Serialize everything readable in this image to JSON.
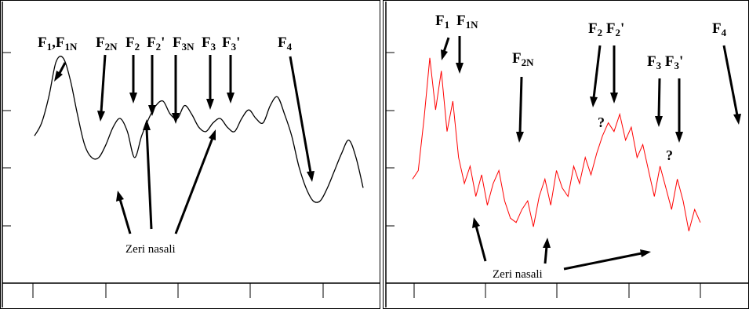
{
  "chart_data": [
    {
      "type": "line",
      "color": "#000000",
      "series_color": "#000000",
      "x": [
        0,
        2,
        4,
        6,
        8,
        10,
        12,
        14,
        16,
        18,
        20,
        22,
        24,
        26,
        28,
        30,
        32,
        34,
        36,
        38,
        40,
        42,
        44,
        46,
        48,
        50,
        52,
        54,
        56,
        58,
        60,
        62,
        64,
        66,
        68,
        70,
        72,
        74,
        76,
        78,
        80,
        82,
        84,
        86,
        88,
        90,
        92
      ],
      "values": [
        3.4,
        3.7,
        4.3,
        5.1,
        5.2,
        4.7,
        3.9,
        3.2,
        2.9,
        2.9,
        3.2,
        3.6,
        3.8,
        3.5,
        2.9,
        3.4,
        3.8,
        4.1,
        4.2,
        3.9,
        3.8,
        4.1,
        3.9,
        3.6,
        3.5,
        3.7,
        3.8,
        3.6,
        3.5,
        3.8,
        4.0,
        3.8,
        3.7,
        4.1,
        4.3,
        3.9,
        3.4,
        2.7,
        2.2,
        1.9,
        1.9,
        2.2,
        2.6,
        3.0,
        3.3,
        2.9,
        2.2
      ],
      "labels": [
        {
          "text": "F1,F1N"
        },
        {
          "text": "F2N"
        },
        {
          "text": "F2"
        },
        {
          "text": "F2'"
        },
        {
          "text": "F3N"
        },
        {
          "text": "F3"
        },
        {
          "text": "F3'"
        },
        {
          "text": "F4"
        }
      ],
      "annotation": "Zeri nasali",
      "ylim": [
        0,
        6.5
      ]
    },
    {
      "type": "line",
      "color": "#ff0000",
      "series_color": "#ff0000",
      "x": [
        0,
        2,
        4,
        6,
        8,
        10,
        12,
        14,
        16,
        18,
        20,
        22,
        24,
        26,
        28,
        30,
        32,
        34,
        36,
        38,
        40,
        42,
        44,
        46,
        48,
        50,
        52,
        54,
        56,
        58,
        60,
        62,
        64,
        66,
        68,
        70,
        72,
        74,
        76,
        78,
        80,
        82,
        84,
        86,
        88,
        90,
        92,
        94,
        96,
        98,
        100
      ],
      "values": [
        2.4,
        2.6,
        3.8,
        5.2,
        4.0,
        4.9,
        3.5,
        4.2,
        2.9,
        2.3,
        2.7,
        2.0,
        2.5,
        1.8,
        2.3,
        2.6,
        1.9,
        1.5,
        1.4,
        1.7,
        1.9,
        1.3,
        2.0,
        2.4,
        1.8,
        2.6,
        2.2,
        2.0,
        2.7,
        2.3,
        2.9,
        2.5,
        3.0,
        3.4,
        3.7,
        3.5,
        3.9,
        3.3,
        3.6,
        2.9,
        3.2,
        2.6,
        2.0,
        2.7,
        2.2,
        1.7,
        2.4,
        1.9,
        1.2,
        1.7,
        1.4
      ],
      "labels": [
        {
          "text": "F1"
        },
        {
          "text": "F1N"
        },
        {
          "text": "F2N"
        },
        {
          "text": "F2 F2'"
        },
        {
          "text": "F3 F3'"
        },
        {
          "text": "F4"
        }
      ],
      "question_marks": [
        "?",
        "?"
      ],
      "annotation": "Zeri nasali",
      "ylim": [
        0,
        6.5
      ]
    }
  ]
}
